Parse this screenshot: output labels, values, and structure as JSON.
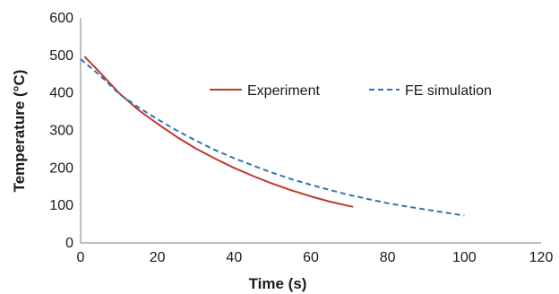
{
  "chart_data": {
    "type": "line",
    "xlabel": "Time (s)",
    "ylabel": "Temperature (°C)",
    "xlim": [
      0,
      120
    ],
    "ylim": [
      0,
      600
    ],
    "x_ticks": [
      0,
      20,
      40,
      60,
      80,
      100,
      120
    ],
    "y_ticks": [
      0,
      100,
      200,
      300,
      400,
      500,
      600
    ],
    "grid": false,
    "legend_position": "upper-right, horizontal",
    "series": [
      {
        "name": "Experiment",
        "color": "#c0392b",
        "line_style": "solid",
        "x": [
          1,
          5,
          10,
          15,
          20,
          25,
          30,
          35,
          40,
          45,
          50,
          55,
          60,
          65,
          71
        ],
        "y": [
          497,
          455,
          400,
          355,
          318,
          283,
          252,
          225,
          200,
          178,
          158,
          140,
          124,
          110,
          96
        ]
      },
      {
        "name": "FE simulation",
        "color": "#2e75b6",
        "line_style": "dashed",
        "x": [
          0,
          5,
          10,
          15,
          20,
          25,
          30,
          35,
          40,
          45,
          50,
          55,
          60,
          65,
          70,
          75,
          80,
          85,
          90,
          95,
          100
        ],
        "y": [
          490,
          447,
          398,
          362,
          330,
          300,
          273,
          248,
          226,
          206,
          187,
          170,
          155,
          141,
          128,
          117,
          106,
          97,
          89,
          81,
          73
        ]
      }
    ]
  }
}
